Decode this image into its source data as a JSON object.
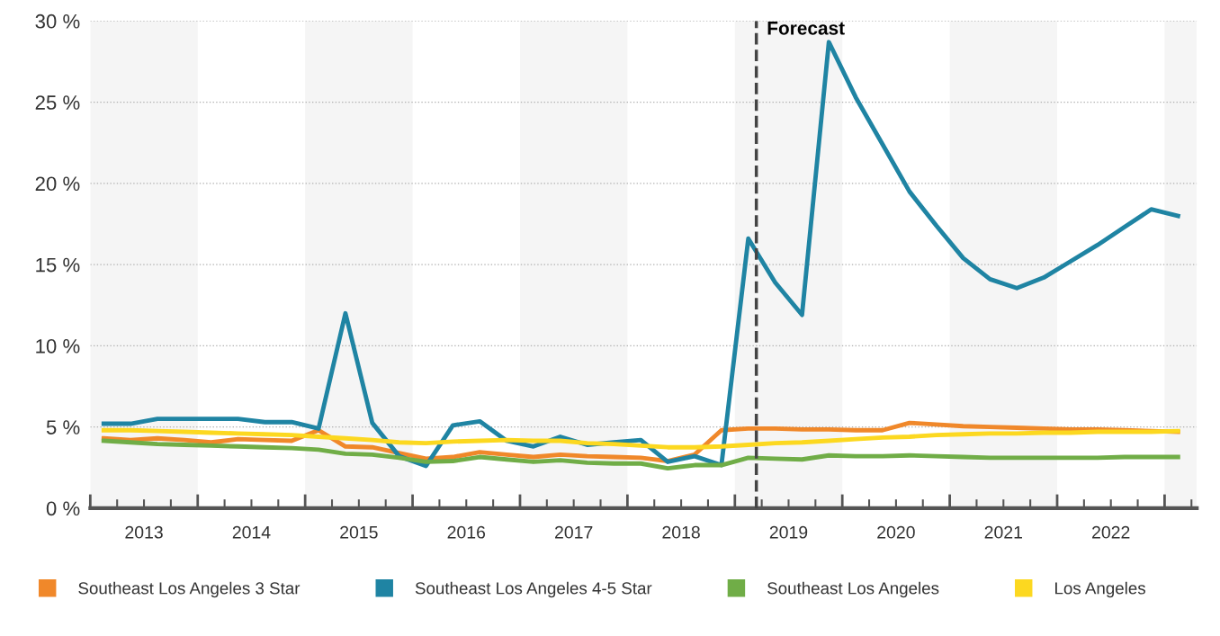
{
  "chart_data": {
    "type": "line",
    "x": [
      2013.125,
      2013.375,
      2013.625,
      2013.875,
      2014.125,
      2014.375,
      2014.625,
      2014.875,
      2015.125,
      2015.375,
      2015.625,
      2015.875,
      2016.125,
      2016.375,
      2016.625,
      2016.875,
      2017.125,
      2017.375,
      2017.625,
      2017.875,
      2018.125,
      2018.375,
      2018.625,
      2018.875,
      2019.125,
      2019.375,
      2019.625,
      2019.875,
      2020.125,
      2020.375,
      2020.625,
      2020.875,
      2021.125,
      2021.375,
      2021.625,
      2021.875,
      2022.125,
      2022.375,
      2022.625,
      2022.875,
      2023.125
    ],
    "series": [
      {
        "name": "Southeast Los Angeles 3 Star",
        "color": "#f0882a",
        "values": [
          4.3,
          4.2,
          4.3,
          4.2,
          4.05,
          4.25,
          4.2,
          4.15,
          4.8,
          3.8,
          3.75,
          3.4,
          3.05,
          3.15,
          3.45,
          3.3,
          3.15,
          3.3,
          3.2,
          3.15,
          3.1,
          2.9,
          3.3,
          4.8,
          4.9,
          4.9,
          4.85,
          4.85,
          4.8,
          4.8,
          5.25,
          5.15,
          5.05,
          5.0,
          4.95,
          4.9,
          4.85,
          4.85,
          4.8,
          4.75,
          4.7
        ]
      },
      {
        "name": "Southeast Los Angeles 4-5 Star",
        "color": "#1f84a3",
        "values": [
          5.2,
          5.2,
          5.5,
          5.5,
          5.5,
          5.5,
          5.3,
          5.3,
          4.9,
          12.0,
          5.25,
          3.2,
          2.6,
          5.1,
          5.35,
          4.15,
          3.8,
          4.4,
          3.9,
          4.05,
          4.2,
          2.85,
          3.2,
          2.65,
          16.6,
          13.9,
          11.9,
          28.7,
          25.3,
          22.4,
          19.5,
          17.4,
          15.4,
          14.1,
          13.55,
          14.2,
          15.2,
          16.2,
          17.3,
          18.4,
          18.0
        ]
      },
      {
        "name": "Southeast Los Angeles",
        "color": "#70ad47",
        "values": [
          4.15,
          4.05,
          3.95,
          3.9,
          3.85,
          3.8,
          3.75,
          3.7,
          3.6,
          3.35,
          3.3,
          3.1,
          2.85,
          2.9,
          3.15,
          3.0,
          2.85,
          2.95,
          2.8,
          2.75,
          2.75,
          2.45,
          2.65,
          2.65,
          3.1,
          3.05,
          3.0,
          3.25,
          3.2,
          3.2,
          3.25,
          3.2,
          3.15,
          3.1,
          3.1,
          3.1,
          3.1,
          3.1,
          3.15,
          3.15,
          3.15
        ]
      },
      {
        "name": "Los Angeles",
        "color": "#fcd820",
        "values": [
          4.8,
          4.8,
          4.75,
          4.7,
          4.65,
          4.6,
          4.55,
          4.5,
          4.4,
          4.3,
          4.2,
          4.05,
          4.0,
          4.1,
          4.15,
          4.2,
          4.15,
          4.15,
          4.0,
          3.95,
          3.85,
          3.75,
          3.75,
          3.8,
          3.9,
          4.0,
          4.05,
          4.15,
          4.25,
          4.35,
          4.4,
          4.5,
          4.55,
          4.6,
          4.6,
          4.65,
          4.65,
          4.7,
          4.7,
          4.7,
          4.75
        ]
      }
    ],
    "xlim": [
      2013,
      2023.3
    ],
    "xticks": [
      {
        "value": 2013,
        "label": null
      },
      {
        "value": 2013.25,
        "label": null
      },
      {
        "value": 2013.5,
        "label": "2013"
      },
      {
        "value": 2013.75,
        "label": null
      },
      {
        "value": 2014,
        "label": null
      },
      {
        "value": 2014.25,
        "label": null
      },
      {
        "value": 2014.5,
        "label": "2014"
      },
      {
        "value": 2014.75,
        "label": null
      },
      {
        "value": 2015,
        "label": null
      },
      {
        "value": 2015.25,
        "label": null
      },
      {
        "value": 2015.5,
        "label": "2015"
      },
      {
        "value": 2015.75,
        "label": null
      },
      {
        "value": 2016,
        "label": null
      },
      {
        "value": 2016.25,
        "label": null
      },
      {
        "value": 2016.5,
        "label": "2016"
      },
      {
        "value": 2016.75,
        "label": null
      },
      {
        "value": 2017,
        "label": null
      },
      {
        "value": 2017.25,
        "label": null
      },
      {
        "value": 2017.5,
        "label": "2017"
      },
      {
        "value": 2017.75,
        "label": null
      },
      {
        "value": 2018,
        "label": null
      },
      {
        "value": 2018.25,
        "label": null
      },
      {
        "value": 2018.5,
        "label": "2018"
      },
      {
        "value": 2018.75,
        "label": null
      },
      {
        "value": 2019,
        "label": null
      },
      {
        "value": 2019.25,
        "label": null
      },
      {
        "value": 2019.5,
        "label": "2019"
      },
      {
        "value": 2019.75,
        "label": null
      },
      {
        "value": 2020,
        "label": null
      },
      {
        "value": 2020.25,
        "label": null
      },
      {
        "value": 2020.5,
        "label": "2020"
      },
      {
        "value": 2020.75,
        "label": null
      },
      {
        "value": 2021,
        "label": null
      },
      {
        "value": 2021.25,
        "label": null
      },
      {
        "value": 2021.5,
        "label": "2021"
      },
      {
        "value": 2021.75,
        "label": null
      },
      {
        "value": 2022,
        "label": null
      },
      {
        "value": 2022.25,
        "label": null
      },
      {
        "value": 2022.5,
        "label": "2022"
      },
      {
        "value": 2022.75,
        "label": null
      },
      {
        "value": 2023,
        "label": null
      },
      {
        "value": 2023.25,
        "label": null
      }
    ],
    "ylim": [
      0,
      30
    ],
    "yticks": [
      {
        "value": 0,
        "label": "0 %"
      },
      {
        "value": 5,
        "label": "5 %"
      },
      {
        "value": 10,
        "label": "10 %"
      },
      {
        "value": 15,
        "label": "15 %"
      },
      {
        "value": 20,
        "label": "20 %"
      },
      {
        "value": 25,
        "label": "25 %"
      },
      {
        "value": 30,
        "label": "30 %"
      }
    ],
    "grid": "y",
    "legend": "bottom",
    "marker": "none",
    "line_style": "solid",
    "ref_lines": [
      {
        "axis": "x",
        "value": 2019.2,
        "label": "Forecast",
        "color": "#444444",
        "line_style": "dashed"
      }
    ],
    "bands": [
      {
        "axis": "x",
        "from": 2013,
        "to": 2014,
        "color": "#f5f5f5"
      },
      {
        "axis": "x",
        "from": 2015,
        "to": 2016,
        "color": "#f5f5f5"
      },
      {
        "axis": "x",
        "from": 2017,
        "to": 2018,
        "color": "#f5f5f5"
      },
      {
        "axis": "x",
        "from": 2019,
        "to": 2020,
        "color": "#f5f5f5"
      },
      {
        "axis": "x",
        "from": 2021,
        "to": 2022,
        "color": "#f5f5f5"
      },
      {
        "axis": "x",
        "from": 2023,
        "to": 2023.3,
        "color": "#f5f5f5"
      }
    ]
  }
}
